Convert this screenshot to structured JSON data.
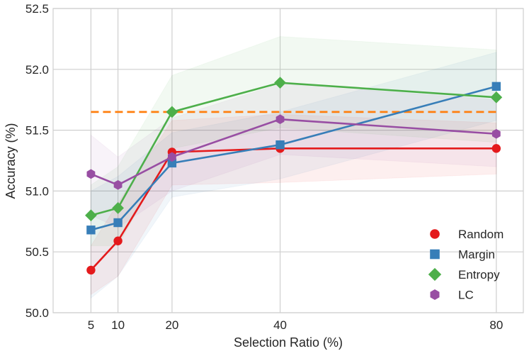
{
  "chart_data": {
    "type": "line",
    "title": "",
    "xlabel": "Selection Ratio (%)",
    "ylabel": "Accuracy (%)",
    "x": [
      5,
      10,
      20,
      40,
      80
    ],
    "xticks": [
      5,
      10,
      20,
      40,
      80
    ],
    "xlim": [
      -2,
      85
    ],
    "ylim": [
      50.0,
      52.5
    ],
    "yticks": [
      "50.0",
      "50.5",
      "51.0",
      "51.5",
      "52.0",
      "52.5"
    ],
    "grid": true,
    "legend_position": "bottom-right",
    "reference_line": {
      "value": 51.65,
      "color": "#ff7f0e",
      "style": "dashed",
      "x_range": [
        5,
        80
      ]
    },
    "series": [
      {
        "name": "Random",
        "marker": "circle",
        "color": "#e41a1c",
        "values": [
          50.35,
          50.59,
          51.32,
          51.35,
          51.35
        ],
        "band_lower": [
          50.15,
          50.3,
          51.05,
          51.07,
          51.14
        ],
        "band_upper": [
          50.55,
          50.9,
          51.58,
          51.63,
          51.56
        ]
      },
      {
        "name": "Margin",
        "marker": "square",
        "color": "#377eb8",
        "values": [
          50.68,
          50.74,
          51.23,
          51.38,
          51.86
        ],
        "band_lower": [
          50.12,
          50.3,
          50.95,
          51.1,
          51.58
        ],
        "band_upper": [
          51.0,
          51.12,
          51.48,
          51.65,
          52.14
        ]
      },
      {
        "name": "Entropy",
        "marker": "diamond",
        "color": "#4daf4a",
        "values": [
          50.8,
          50.86,
          51.65,
          51.89,
          51.77
        ],
        "band_lower": [
          50.55,
          50.55,
          51.35,
          51.52,
          51.4
        ],
        "band_upper": [
          51.05,
          51.2,
          51.95,
          52.27,
          52.16
        ]
      },
      {
        "name": "LC",
        "marker": "hexagon",
        "color": "#984ea3",
        "values": [
          51.14,
          51.05,
          51.28,
          51.59,
          51.47
        ],
        "band_lower": [
          50.8,
          50.7,
          51.0,
          51.3,
          51.2
        ],
        "band_upper": [
          51.46,
          51.28,
          51.6,
          51.88,
          51.75
        ]
      }
    ]
  }
}
